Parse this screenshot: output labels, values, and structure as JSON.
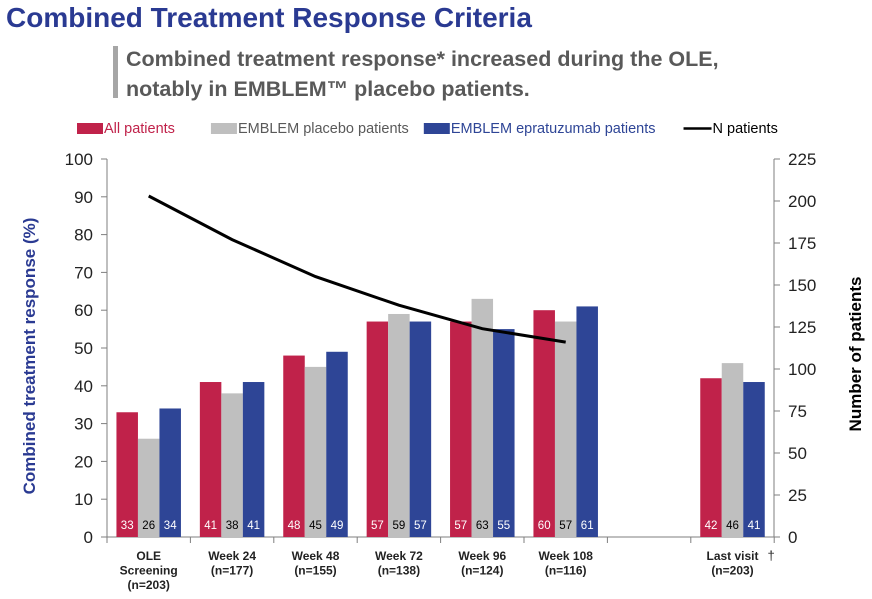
{
  "title": "Combined Treatment Response Criteria",
  "subtitle_line1": "Combined treatment response* increased during the OLE,",
  "subtitle_line2": "notably in EMBLEM™ placebo patients.",
  "chart_data": {
    "type": "bar",
    "categories": [
      {
        "line1": "OLE",
        "line2": "Screening",
        "line3": "(n=203)"
      },
      {
        "line1": "Week 24",
        "line2": "(n=177)"
      },
      {
        "line1": "Week 48",
        "line2": "(n=155)"
      },
      {
        "line1": "Week 72",
        "line2": "(n=138)"
      },
      {
        "line1": "Week 96",
        "line2": "(n=124)"
      },
      {
        "line1": "Week 108",
        "line2": "(n=116)"
      },
      {
        "line1": "",
        "line2": ""
      },
      {
        "line1": "Last visit",
        "dagger": "†",
        "line2": "(n=203)"
      }
    ],
    "series": [
      {
        "name": "All patients",
        "color": "#c0224a",
        "values": [
          33,
          41,
          48,
          57,
          57,
          60,
          null,
          42
        ]
      },
      {
        "name": "EMBLEM placebo patients",
        "color": "#bfbfbf",
        "values": [
          26,
          38,
          45,
          59,
          63,
          57,
          null,
          46
        ]
      },
      {
        "name": "EMBLEM epratuzumab patients",
        "color": "#2e4596",
        "values": [
          34,
          41,
          49,
          57,
          55,
          61,
          null,
          41
        ]
      }
    ],
    "line_series": {
      "name": "N patients",
      "color": "#000000",
      "values": [
        203,
        177,
        155,
        138,
        124,
        116,
        null,
        null
      ]
    },
    "ylabel": "Combined treatment response (%)",
    "y2label": "Number of patients",
    "ylim": [
      0,
      100
    ],
    "y2lim": [
      0,
      225
    ],
    "yticks": [
      0,
      10,
      20,
      30,
      40,
      50,
      60,
      70,
      80,
      90,
      100
    ],
    "y2ticks": [
      0,
      25,
      50,
      75,
      100,
      125,
      150,
      175,
      200,
      225
    ],
    "legend_position": "top",
    "grid": false
  }
}
